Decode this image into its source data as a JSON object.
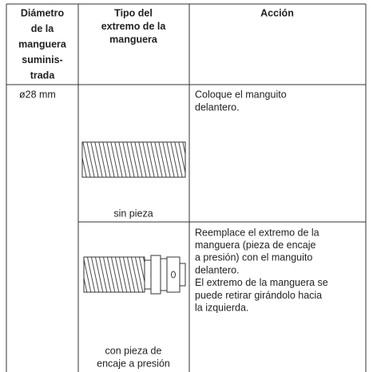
{
  "table": {
    "header": [
      [
        "Diámetro",
        "de la",
        "manguera",
        "suminis-",
        "trada"
      ],
      [
        "Tipo del",
        "extremo de la",
        "manguera"
      ],
      [
        "Acción"
      ]
    ],
    "diameter": "ø28 mm",
    "rows": [
      {
        "end_type": [
          "sin pieza"
        ],
        "action": [
          "Coloque el manguito",
          "delantero."
        ]
      },
      {
        "end_type": [
          "con pieza de",
          "encaje a presión"
        ],
        "action": [
          "Reemplace el extremo de la",
          "manguera (pieza de encaje",
          "a presión) con el manguito",
          "delantero.",
          "El extremo de la manguera se",
          "puede retirar girándolo hacia",
          "la izquierda."
        ]
      }
    ]
  }
}
